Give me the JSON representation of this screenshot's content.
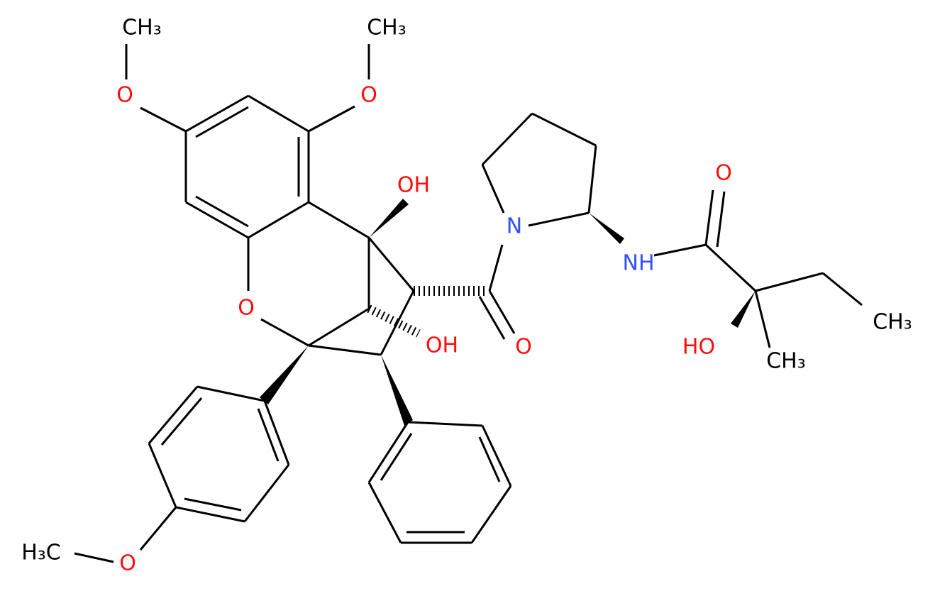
{
  "labels": [
    "CH₃",
    "CH₃",
    "O",
    "O",
    "OH",
    "O",
    "OH",
    "O",
    "N",
    "NH",
    "O",
    "HO",
    "CH₃",
    "CH₃",
    "H₃C",
    "O"
  ]
}
